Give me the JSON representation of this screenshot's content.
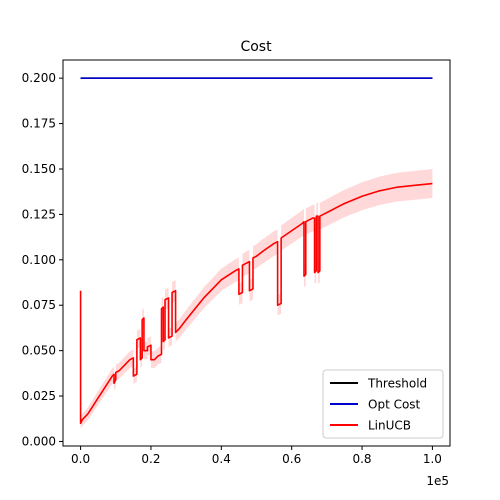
{
  "chart_data": {
    "type": "line",
    "title": "Cost",
    "xlabel": "",
    "ylabel": "",
    "x_offset_text": "1e5",
    "xlim": [
      -0.05,
      1.05
    ],
    "ylim": [
      -0.0025,
      0.21
    ],
    "x_ticks": [
      0.0,
      0.2,
      0.4,
      0.6,
      0.8,
      1.0
    ],
    "x_tick_labels": [
      "0.0",
      "0.2",
      "0.4",
      "0.6",
      "0.8",
      "1.0"
    ],
    "y_ticks": [
      0.0,
      0.025,
      0.05,
      0.075,
      0.1,
      0.125,
      0.15,
      0.175,
      0.2
    ],
    "y_tick_labels": [
      "0.000",
      "0.025",
      "0.050",
      "0.075",
      "0.100",
      "0.125",
      "0.150",
      "0.175",
      "0.200"
    ],
    "grid": false,
    "legend": {
      "position": "lower-right"
    },
    "series": [
      {
        "name": "Threshold",
        "color": "#000000",
        "x": [
          0.0,
          1.0
        ],
        "y": [
          0.2,
          0.2
        ]
      },
      {
        "name": "Opt Cost",
        "color": "#0000cc",
        "x": [
          0.0,
          1.0
        ],
        "y": [
          0.2,
          0.2
        ]
      },
      {
        "name": "LinUCB",
        "color": "#ff0000",
        "band_color": "#ffcccc",
        "x": [
          0.0,
          0.0,
          0.005,
          0.01,
          0.02,
          0.03,
          0.04,
          0.05,
          0.06,
          0.07,
          0.08,
          0.09,
          0.095,
          0.095,
          0.1,
          0.1,
          0.11,
          0.12,
          0.13,
          0.14,
          0.15,
          0.15,
          0.16,
          0.16,
          0.17,
          0.17,
          0.175,
          0.175,
          0.18,
          0.18,
          0.19,
          0.19,
          0.2,
          0.2,
          0.21,
          0.22,
          0.23,
          0.23,
          0.235,
          0.235,
          0.24,
          0.24,
          0.25,
          0.25,
          0.26,
          0.26,
          0.27,
          0.27,
          0.28,
          0.3,
          0.35,
          0.4,
          0.44,
          0.45,
          0.45,
          0.46,
          0.46,
          0.47,
          0.48,
          0.48,
          0.49,
          0.49,
          0.5,
          0.52,
          0.55,
          0.56,
          0.56,
          0.57,
          0.57,
          0.6,
          0.63,
          0.635,
          0.635,
          0.64,
          0.64,
          0.65,
          0.66,
          0.665,
          0.665,
          0.67,
          0.67,
          0.675,
          0.675,
          0.68,
          0.68,
          0.7,
          0.75,
          0.8,
          0.85,
          0.9,
          0.95,
          1.0
        ],
        "y": [
          0.083,
          0.01,
          0.012,
          0.013,
          0.015,
          0.018,
          0.021,
          0.024,
          0.027,
          0.03,
          0.033,
          0.036,
          0.037,
          0.032,
          0.034,
          0.038,
          0.039,
          0.041,
          0.043,
          0.045,
          0.046,
          0.036,
          0.037,
          0.056,
          0.057,
          0.045,
          0.046,
          0.067,
          0.068,
          0.05,
          0.05,
          0.052,
          0.053,
          0.045,
          0.045,
          0.047,
          0.048,
          0.073,
          0.074,
          0.055,
          0.056,
          0.078,
          0.079,
          0.057,
          0.058,
          0.082,
          0.083,
          0.06,
          0.062,
          0.067,
          0.079,
          0.089,
          0.094,
          0.095,
          0.081,
          0.082,
          0.097,
          0.098,
          0.099,
          0.083,
          0.084,
          0.101,
          0.102,
          0.105,
          0.109,
          0.11,
          0.075,
          0.076,
          0.112,
          0.116,
          0.12,
          0.121,
          0.091,
          0.092,
          0.121,
          0.122,
          0.123,
          0.123,
          0.093,
          0.094,
          0.124,
          0.124,
          0.093,
          0.094,
          0.124,
          0.126,
          0.131,
          0.135,
          0.138,
          0.14,
          0.141,
          0.142
        ]
      }
    ]
  }
}
